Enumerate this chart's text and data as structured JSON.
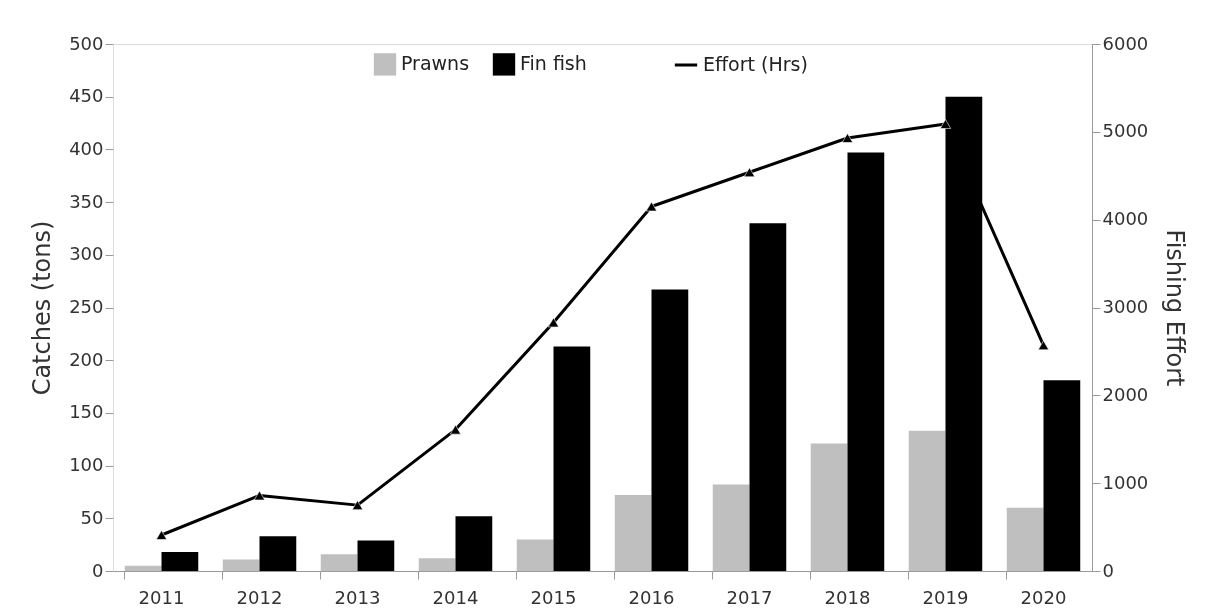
{
  "chart_data": {
    "type": "bar",
    "categories": [
      "2011",
      "2012",
      "2013",
      "2014",
      "2015",
      "2016",
      "2017",
      "2018",
      "2019",
      "2020"
    ],
    "ylabel": "Catches (tons)",
    "y2label": "Fishing Effort",
    "ylim": [
      0,
      500
    ],
    "yticks": [
      0,
      50,
      100,
      150,
      200,
      250,
      300,
      350,
      400,
      450,
      500
    ],
    "y2lim": [
      0,
      6000
    ],
    "y2ticks": [
      0,
      1000,
      2000,
      3000,
      4000,
      5000,
      6000
    ],
    "grid": false,
    "legend": "top",
    "marker": "triangle",
    "line_style": "solid",
    "series": [
      {
        "name": "Prawns",
        "color": "#bfbfbf",
        "values": [
          5,
          11,
          16,
          12,
          30,
          72,
          82,
          121,
          133,
          60
        ]
      },
      {
        "name": "Fin fish",
        "color": "#000000",
        "values": [
          18,
          33,
          29,
          52,
          213,
          267,
          330,
          397,
          450,
          181
        ]
      },
      {
        "name": "Effort (Hrs)",
        "type": "line",
        "axis": "y2",
        "color": "#000000",
        "values": [
          410,
          860,
          750,
          1610,
          2830,
          4150,
          4540,
          4930,
          5090,
          2570
        ]
      }
    ]
  }
}
